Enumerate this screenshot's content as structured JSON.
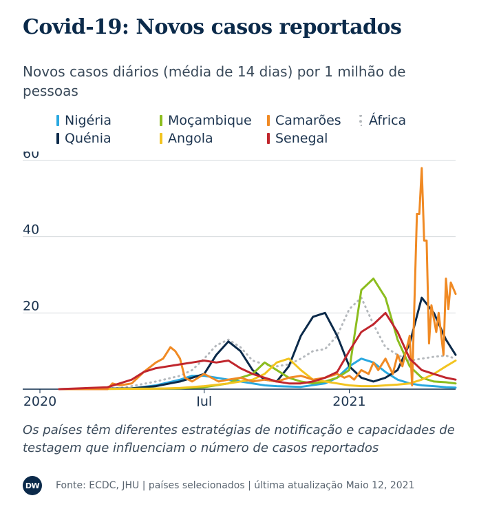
{
  "title": "Covid-19: Novos casos reportados",
  "subtitle": "Novos casos diários (média de 14 dias) por 1 milhão de pessoas",
  "note": "Os países têm diferentes estratégias de notificação e capacidades de testagem que influenciam o número de casos reportados",
  "footer": {
    "logo_text": "DW",
    "source": "Fonte: ECDC, JHU | países selecionados | última atualização Maio 12, 2021"
  },
  "legend": [
    {
      "label": "Nigéria",
      "color": "#29a8e0"
    },
    {
      "label": "Quénia",
      "color": "#0b2a4a"
    },
    {
      "label": "Moçambique",
      "color": "#8cbd1f"
    },
    {
      "label": "Angola",
      "color": "#f2c420"
    },
    {
      "label": "Camarões",
      "color": "#f08a24"
    },
    {
      "label": "Senegal",
      "color": "#c0262d"
    },
    {
      "label": "África",
      "color": "#b5b9bd",
      "dotted": true
    }
  ],
  "chart_data": {
    "type": "line",
    "x_ticks": [
      {
        "label": "2020",
        "x": 0
      },
      {
        "label": "Jul",
        "x": 6
      },
      {
        "label": "2021",
        "x": 12
      }
    ],
    "y_ticks": [
      {
        "label": "20",
        "value": 20
      },
      {
        "label": "40",
        "value": 40
      },
      {
        "label": "60",
        "value": 60
      }
    ],
    "xlim": [
      0,
      16.4
    ],
    "ylim": [
      0,
      60
    ],
    "grid": true,
    "series": [
      {
        "name": "África",
        "color": "#b5b9bd",
        "dashed": true,
        "x": [
          0,
          2.5,
          3,
          4,
          5,
          5.5,
          6,
          6.5,
          7,
          7.5,
          8,
          8.5,
          9,
          9.5,
          10,
          10.5,
          11,
          11.5,
          12,
          12.5,
          13,
          13.5,
          14,
          14.5,
          15,
          15.5,
          16,
          16.4
        ],
        "y": [
          0,
          0.3,
          0.8,
          2,
          3.5,
          5,
          8,
          11.5,
          13,
          11,
          7.5,
          6.5,
          6,
          6.5,
          8,
          10,
          10.5,
          14,
          21,
          24,
          17,
          11,
          9,
          7.5,
          8,
          8.5,
          8.8,
          8
        ]
      },
      {
        "name": "Nigéria",
        "color": "#29a8e0",
        "x": [
          0,
          3,
          4,
          5,
          5.5,
          6,
          6.5,
          7,
          7.5,
          8,
          8.5,
          9,
          10,
          11,
          11.5,
          12,
          12.5,
          13,
          13.5,
          14,
          14.5,
          15,
          15.5,
          16,
          16.4
        ],
        "y": [
          0,
          0.2,
          1,
          2.5,
          3.5,
          3.5,
          3,
          2.5,
          2,
          1.5,
          1,
          0.8,
          0.6,
          1.5,
          3,
          6,
          8,
          7,
          4.5,
          2.5,
          1.5,
          1,
          0.8,
          0.5,
          0.4
        ]
      },
      {
        "name": "Quénia",
        "color": "#0b2a4a",
        "x": [
          0,
          3,
          4,
          5,
          5.5,
          6,
          6.5,
          7,
          7.5,
          8,
          8.5,
          9,
          9.5,
          10,
          10.5,
          11,
          11.5,
          12,
          12.5,
          13,
          13.5,
          14,
          14.5,
          15,
          15.5,
          16,
          16.4
        ],
        "y": [
          0,
          0.2,
          0.8,
          2,
          3,
          4,
          9,
          12.5,
          10,
          5,
          2.5,
          2,
          6,
          14,
          19,
          20,
          14,
          6,
          3,
          2,
          3,
          5,
          12,
          24,
          20,
          13,
          9
        ]
      },
      {
        "name": "Moçambique",
        "color": "#8cbd1f",
        "x": [
          0,
          5,
          6,
          7,
          7.5,
          8,
          8.5,
          9,
          9.5,
          10,
          10.5,
          11,
          11.5,
          12,
          12.5,
          13,
          13.5,
          14,
          14.5,
          15,
          15.5,
          16,
          16.4
        ],
        "y": [
          0,
          0.2,
          0.5,
          1.5,
          3,
          4,
          7,
          5,
          3,
          2,
          1.5,
          2,
          3,
          5,
          26,
          29,
          24,
          13,
          6,
          3,
          2,
          1.8,
          1.5
        ]
      },
      {
        "name": "Angola",
        "color": "#f2c420",
        "x": [
          0,
          4,
          5,
          6,
          7,
          8,
          8.5,
          9,
          9.5,
          10,
          10.5,
          11,
          11.5,
          12,
          12.5,
          13,
          13.5,
          14,
          14.5,
          15,
          15.5,
          16,
          16.4
        ],
        "y": [
          0,
          0.1,
          0.3,
          0.8,
          1.5,
          2.5,
          4,
          7,
          8,
          5,
          2.5,
          2,
          1.5,
          1,
          0.8,
          0.8,
          1,
          1.2,
          1.5,
          2.5,
          4,
          6,
          7.5
        ]
      },
      {
        "name": "Camarões",
        "color": "#f08a24",
        "x": [
          0,
          2,
          2.2,
          2.5,
          3,
          3.5,
          4,
          4.3,
          4.6,
          4.8,
          5,
          5.2,
          5.5,
          6,
          6.3,
          6.6,
          7,
          7.5,
          8,
          8.5,
          9,
          9.5,
          10,
          10.5,
          11,
          11.5,
          11.8,
          12,
          12.2,
          12.5,
          12.8,
          13,
          13.2,
          13.5,
          13.8,
          14,
          14.2,
          14.5,
          14.6,
          14.8,
          14.9,
          15,
          15.1,
          15.2,
          15.3,
          15.4,
          15.6,
          15.7,
          15.9,
          16,
          16.1,
          16.2,
          16.4
        ],
        "y": [
          0,
          0,
          1.5,
          1,
          1.5,
          4.5,
          7,
          8,
          11,
          10,
          8,
          3,
          2,
          4,
          3,
          2,
          2.5,
          3,
          2,
          2.5,
          2,
          3,
          3.5,
          2.5,
          3,
          4,
          3,
          3.5,
          2.5,
          5,
          4,
          7,
          5,
          8,
          4,
          9,
          6,
          14,
          1,
          46,
          46,
          58,
          39,
          39,
          12,
          22,
          15,
          20,
          9,
          29,
          21,
          28,
          25
        ]
      },
      {
        "name": "Senegal",
        "color": "#c0262d",
        "x": [
          0,
          2,
          3,
          3.5,
          4,
          4.5,
          5,
          5.5,
          6,
          6.5,
          7,
          7.5,
          8,
          8.5,
          9,
          9.5,
          10,
          10.5,
          11,
          11.5,
          12,
          12.5,
          13,
          13.5,
          14,
          14.5,
          15,
          15.5,
          16,
          16.4
        ],
        "y": [
          0,
          0.5,
          2.5,
          4.5,
          5.5,
          6,
          6.5,
          7,
          7.5,
          7,
          7.5,
          5.5,
          4,
          3,
          2,
          1.5,
          1.5,
          2,
          3,
          4.5,
          10,
          15,
          17,
          20,
          15,
          8,
          5,
          4,
          3,
          2.5
        ]
      }
    ]
  }
}
